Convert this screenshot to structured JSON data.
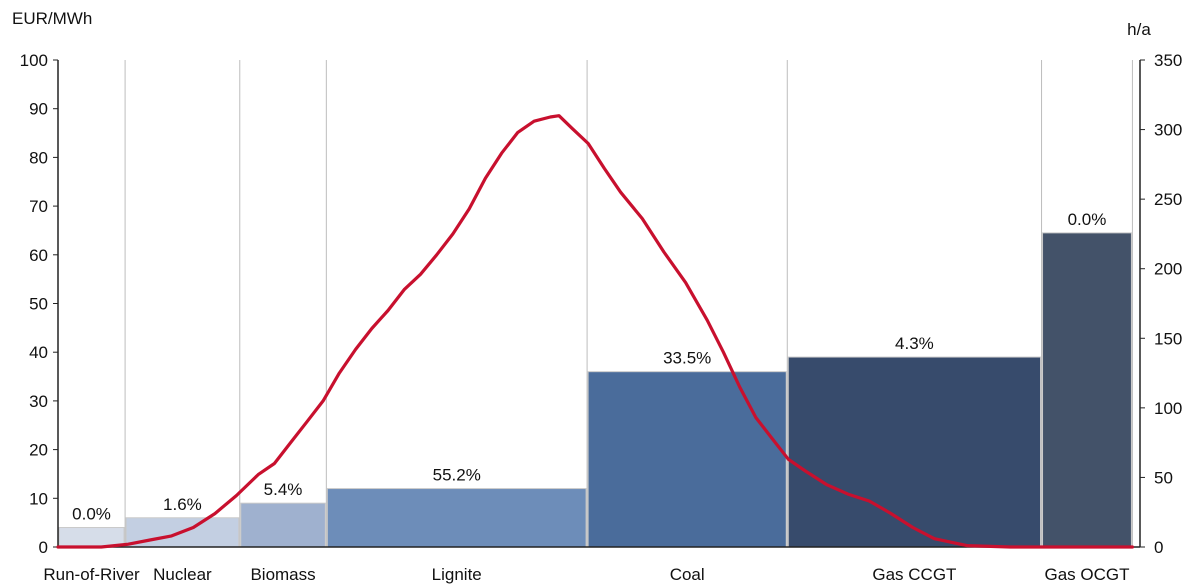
{
  "chart_data": {
    "type": "bar",
    "subtype": "merit-order step chart with duration curve overlay",
    "left_axis": {
      "label": "EUR/MWh",
      "ylim": [
        0,
        100
      ],
      "ticks": [
        0,
        10,
        20,
        30,
        40,
        50,
        60,
        70,
        80,
        90,
        100
      ]
    },
    "right_axis": {
      "label": "h/a",
      "ylim": [
        0,
        350
      ],
      "ticks": [
        0,
        50,
        100,
        150,
        200,
        250,
        300,
        350
      ]
    },
    "grid": "vertical separators between technologies",
    "categories": [
      {
        "name": "Run-of-River",
        "price": 4.0,
        "share_label": "0.0%",
        "color": "#d6dde9"
      },
      {
        "name": "Nuclear",
        "price": 6.0,
        "share_label": "1.6%",
        "color": "#c3cfe2"
      },
      {
        "name": "Biomass",
        "price": 9.0,
        "share_label": "5.4%",
        "color": "#9fb1cf"
      },
      {
        "name": "Lignite",
        "price": 12.0,
        "share_label": "55.2%",
        "color": "#6d8db9"
      },
      {
        "name": "Coal",
        "price": 36.0,
        "share_label": "33.5%",
        "color": "#4a6c9b"
      },
      {
        "name": "Gas CCGT",
        "price": 39.0,
        "share_label": "4.3%",
        "color": "#374b6c"
      },
      {
        "name": "Gas OCGT",
        "price": 64.5,
        "share_label": "0.0%",
        "color": "#435269"
      }
    ],
    "category_bounds": [
      0,
      6.2,
      16.8,
      24.8,
      48.9,
      67.4,
      90.9,
      99.3
    ],
    "x_range": [
      0,
      100
    ],
    "curve": {
      "color": "#c8102e",
      "axis": "right",
      "points": [
        [
          0,
          0
        ],
        [
          4,
          0
        ],
        [
          6.5,
          2
        ],
        [
          8.5,
          5
        ],
        [
          10.5,
          8
        ],
        [
          12.5,
          14
        ],
        [
          14.5,
          24
        ],
        [
          16.5,
          37
        ],
        [
          18.5,
          52
        ],
        [
          20,
          60
        ],
        [
          21.5,
          75
        ],
        [
          23,
          90
        ],
        [
          24.5,
          105
        ],
        [
          26,
          125
        ],
        [
          27.5,
          142
        ],
        [
          29,
          157
        ],
        [
          30.5,
          170
        ],
        [
          32,
          185
        ],
        [
          33.5,
          196
        ],
        [
          35,
          210
        ],
        [
          36.5,
          225
        ],
        [
          38,
          243
        ],
        [
          39.5,
          265
        ],
        [
          41,
          283
        ],
        [
          42.5,
          298
        ],
        [
          44,
          306
        ],
        [
          45.5,
          309
        ],
        [
          46.3,
          310
        ],
        [
          47.5,
          301
        ],
        [
          49,
          290
        ],
        [
          50.5,
          272
        ],
        [
          52,
          255
        ],
        [
          54,
          236
        ],
        [
          56,
          212
        ],
        [
          58,
          190
        ],
        [
          60,
          163
        ],
        [
          61.5,
          140
        ],
        [
          63,
          115
        ],
        [
          64.5,
          93
        ],
        [
          66,
          78
        ],
        [
          67.5,
          63
        ],
        [
          69,
          55
        ],
        [
          71,
          45
        ],
        [
          73,
          38
        ],
        [
          75,
          33
        ],
        [
          77,
          24
        ],
        [
          79,
          14
        ],
        [
          81,
          6
        ],
        [
          84,
          1
        ],
        [
          88,
          0
        ],
        [
          99.3,
          0
        ]
      ]
    }
  }
}
